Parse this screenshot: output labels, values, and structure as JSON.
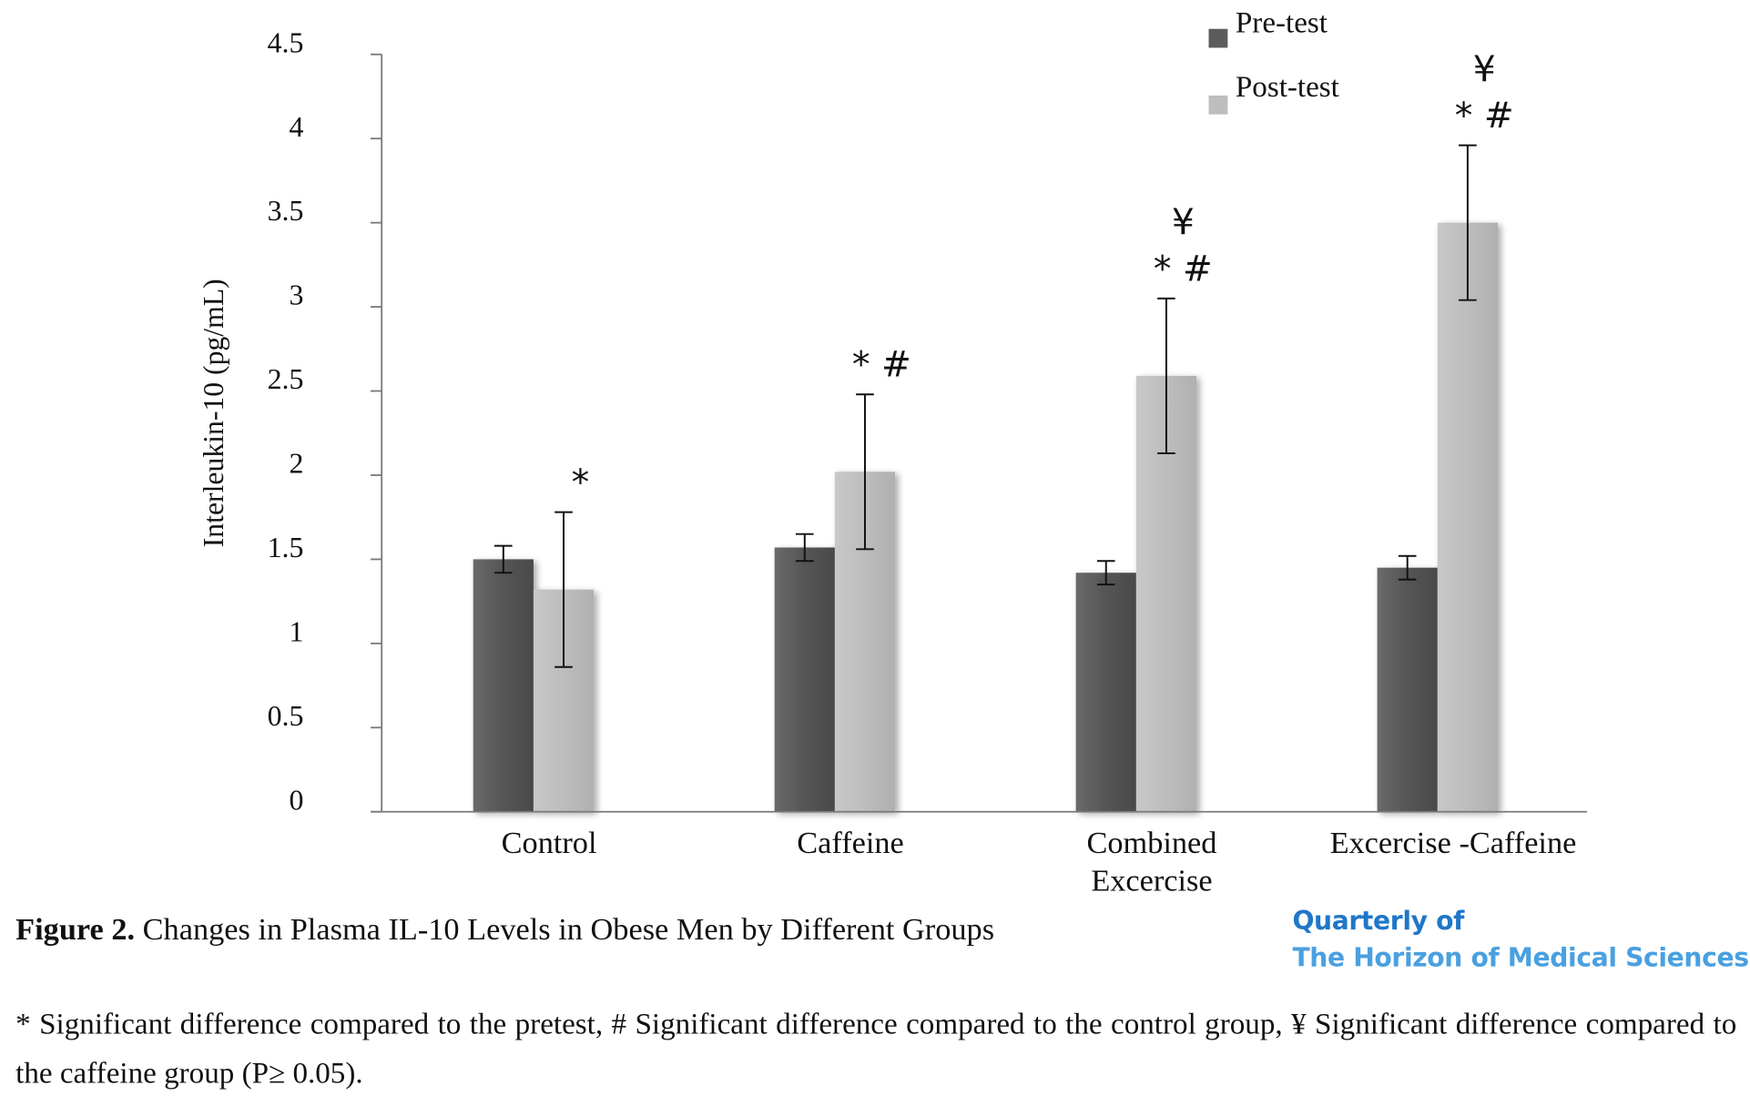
{
  "chart_data": {
    "type": "bar",
    "ylabel": "Interleukin-10 (pg/mL)",
    "ylim": [
      0,
      4.5
    ],
    "yticks": [
      "0",
      "0.5",
      "1",
      "1.5",
      "2",
      "2.5",
      "3",
      "3.5",
      "4",
      "4.5"
    ],
    "categories": [
      [
        "Control"
      ],
      [
        "Caffeine"
      ],
      [
        "Combined",
        "Excercise"
      ],
      [
        "Excercise -Caffeine"
      ]
    ],
    "series": [
      {
        "name": "Pre-test",
        "color": "#5c5c5c",
        "values": [
          1.5,
          1.57,
          1.42,
          1.45
        ],
        "error": [
          0.08,
          0.08,
          0.07,
          0.07
        ]
      },
      {
        "name": "Post-test",
        "color": "#bebebe",
        "values": [
          1.32,
          2.02,
          2.59,
          3.5
        ],
        "error": [
          0.46,
          0.46,
          0.46,
          0.46
        ]
      }
    ],
    "significance": [
      [
        [
          "*"
        ]
      ],
      [
        [
          "* #"
        ]
      ],
      [
        [
          "¥"
        ],
        [
          "* #"
        ]
      ],
      [
        [
          "¥"
        ],
        [
          "*  #"
        ]
      ]
    ],
    "legend_position": "top-right",
    "grid": false
  },
  "caption": {
    "label": "Figure 2.",
    "text": " Changes in Plasma IL-10 Levels in Obese Men by Different Groups"
  },
  "brand": {
    "line1": "Quarterly of",
    "line2": "The Horizon of Medical Sciences"
  },
  "footnote": "* Significant difference compared to the pretest, # Significant difference compared to the control group, ¥ Significant difference compared to the caffeine group (P≥ 0.05).",
  "colors": {
    "brand_primary": "#1f77c8",
    "brand_secondary": "#4aa0e0"
  }
}
